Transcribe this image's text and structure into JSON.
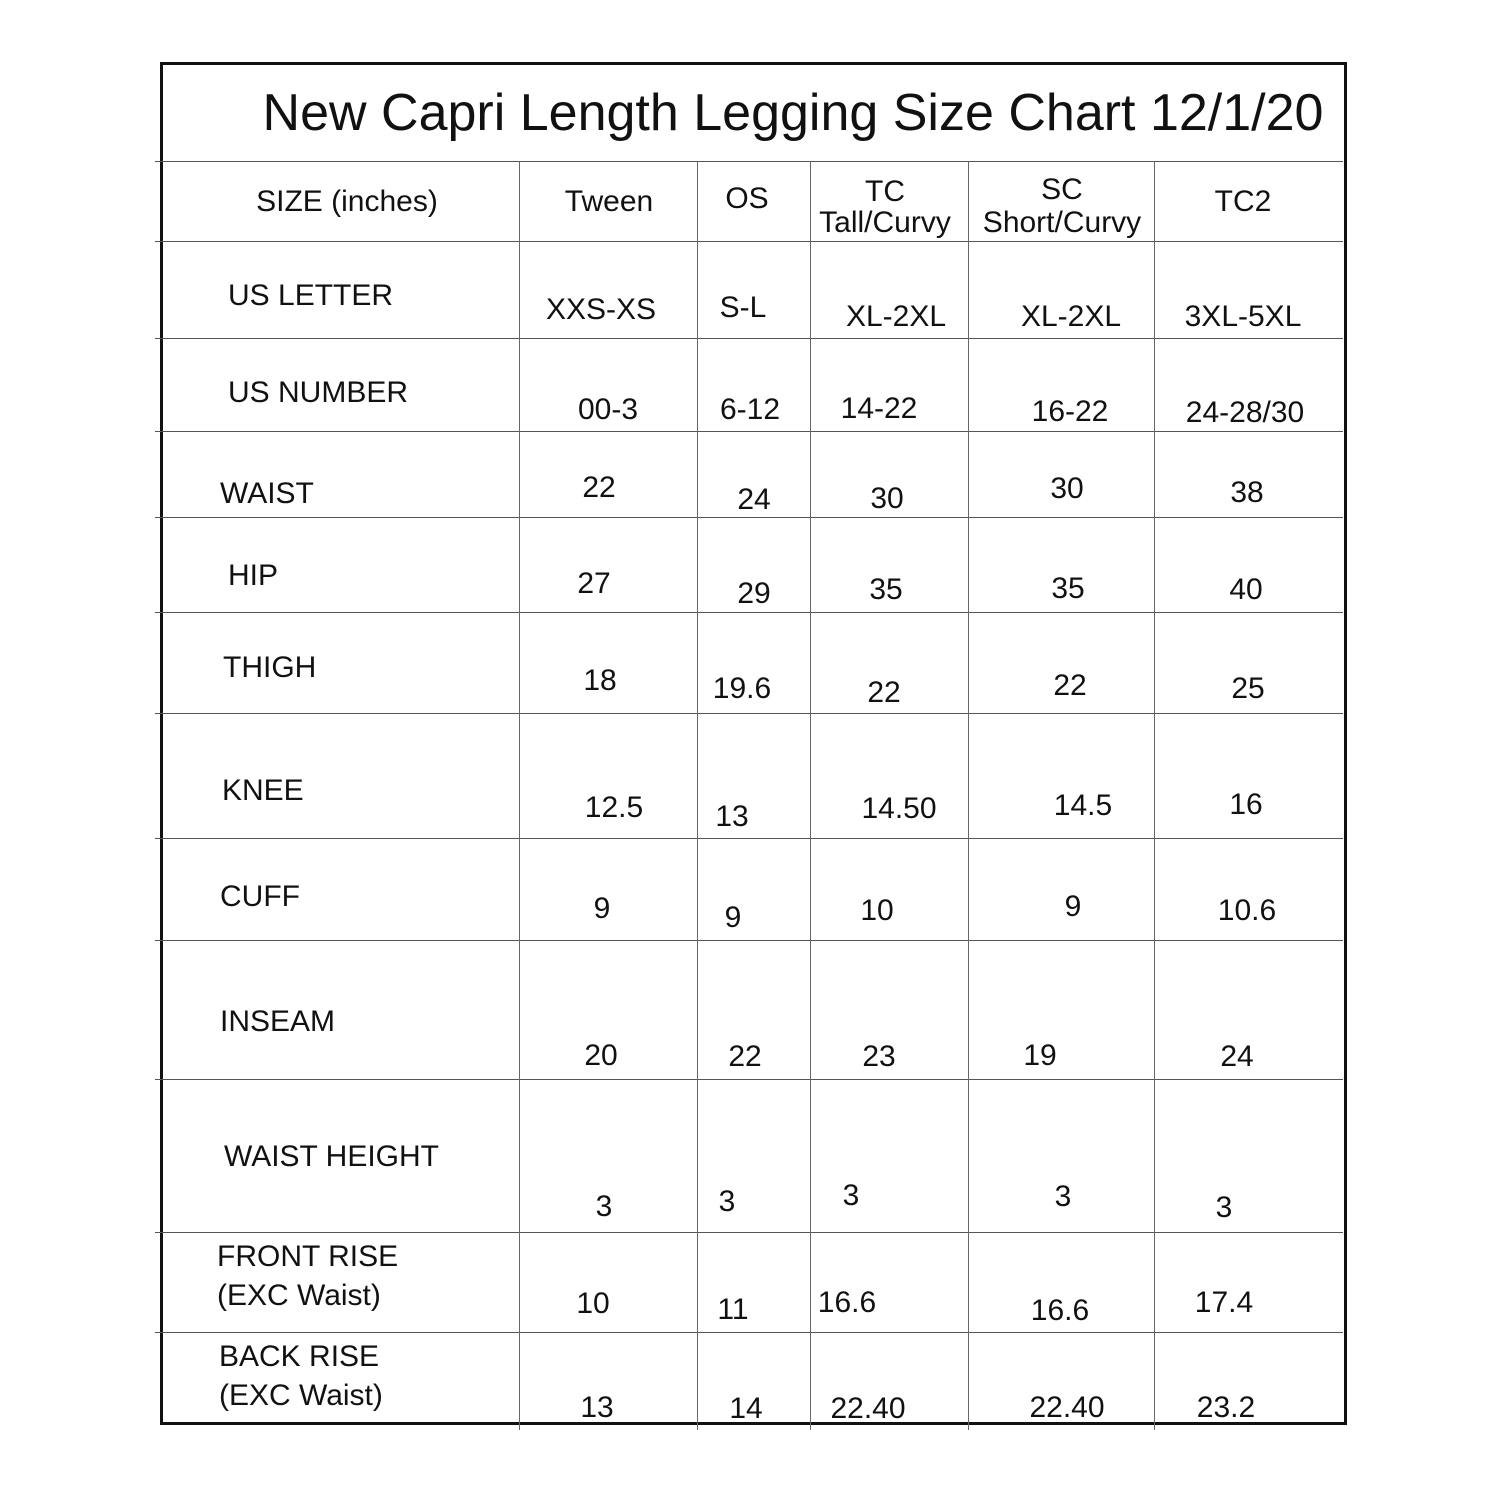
{
  "title": "New Capri Length Legging Size Chart 12/1/20",
  "header": {
    "label": "SIZE (inches)",
    "columns": [
      {
        "line1": "Tween",
        "line2": ""
      },
      {
        "line1": "OS",
        "line2": ""
      },
      {
        "line1": "TC",
        "line2": "Tall/Curvy"
      },
      {
        "line1": "SC",
        "line2": "Short/Curvy"
      },
      {
        "line1": "TC2",
        "line2": ""
      }
    ]
  },
  "rows": [
    {
      "label1": "US LETTER",
      "label2": "",
      "values": [
        "XXS-XS",
        "S-L",
        "XL-2XL",
        "XL-2XL",
        "3XL-5XL"
      ]
    },
    {
      "label1": "US NUMBER",
      "label2": "",
      "values": [
        "00-3",
        "6-12",
        "14-22",
        "16-22",
        "24-28/30"
      ]
    },
    {
      "label1": "WAIST",
      "label2": "",
      "values": [
        "22",
        "24",
        "30",
        "30",
        "38"
      ]
    },
    {
      "label1": "HIP",
      "label2": "",
      "values": [
        "27",
        "29",
        "35",
        "35",
        "40"
      ]
    },
    {
      "label1": "THIGH",
      "label2": "",
      "values": [
        "18",
        "19.6",
        "22",
        "22",
        "25"
      ]
    },
    {
      "label1": "KNEE",
      "label2": "",
      "values": [
        "12.5",
        "13",
        "14.50",
        "14.5",
        "16"
      ]
    },
    {
      "label1": "CUFF",
      "label2": "",
      "values": [
        "9",
        "9",
        "10",
        "9",
        "10.6"
      ]
    },
    {
      "label1": "INSEAM",
      "label2": "",
      "values": [
        "20",
        "22",
        "23",
        "19",
        "24"
      ]
    },
    {
      "label1": "WAIST HEIGHT",
      "label2": "",
      "values": [
        "3",
        "3",
        "3",
        "3",
        "3"
      ]
    },
    {
      "label1": "FRONT RISE",
      "label2": "(EXC Waist)",
      "values": [
        "10",
        "11",
        "16.6",
        "16.6",
        "17.4"
      ]
    },
    {
      "label1": "BACK RISE",
      "label2": "(EXC Waist)",
      "values": [
        "13",
        "14",
        "22.40",
        "22.40",
        "23.2"
      ]
    }
  ]
}
